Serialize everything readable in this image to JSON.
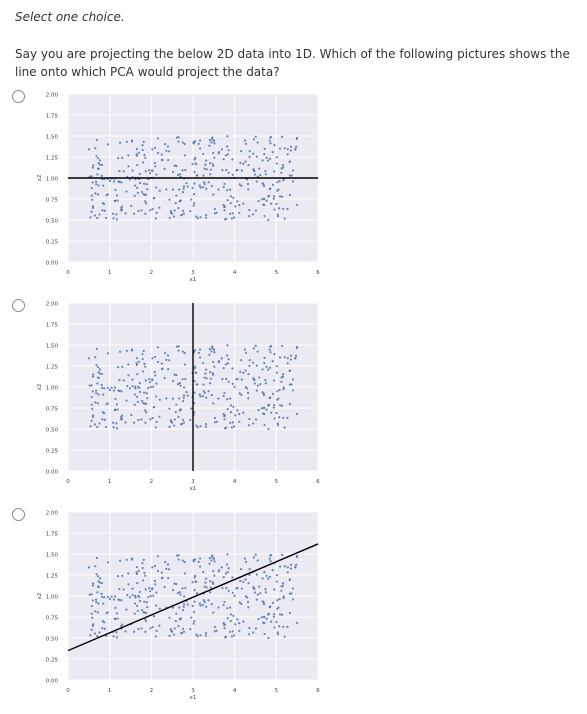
{
  "instruction": "Select one choice.",
  "question": "Say you are projecting the below 2D data into 1D. Which of the following pictures shows the line onto which PCA would project the data?",
  "options": [
    {
      "selected": false,
      "line": "horizontal"
    },
    {
      "selected": false,
      "line": "vertical"
    },
    {
      "selected": false,
      "line": "diagonal"
    }
  ],
  "colors": {
    "plot_bg": "#eaeaf2",
    "points": "#4c72b0",
    "line": "#000000",
    "grid": "#ffffff"
  },
  "chart_data": [
    {
      "type": "scatter",
      "xlabel": "x1",
      "ylabel": "x2",
      "xlim": [
        0,
        6
      ],
      "ylim": [
        0,
        2
      ],
      "xticks": [
        "0",
        "1",
        "2",
        "3",
        "4",
        "5",
        "6"
      ],
      "yticks": [
        "0.00",
        "0.25",
        "0.50",
        "0.75",
        "1.00",
        "1.25",
        "1.50",
        "1.75",
        "2.00"
      ],
      "points": {
        "count": 400,
        "x_range": [
          0.5,
          5.5
        ],
        "y_range": [
          0.5,
          1.5
        ]
      },
      "projection_line": {
        "orientation": "horizontal",
        "y": 1.0
      }
    },
    {
      "type": "scatter",
      "xlabel": "x1",
      "ylabel": "x2",
      "xlim": [
        0,
        6
      ],
      "ylim": [
        0,
        2
      ],
      "xticks": [
        "0",
        "1",
        "2",
        "3",
        "4",
        "5",
        "6"
      ],
      "yticks": [
        "0.00",
        "0.25",
        "0.50",
        "0.75",
        "1.00",
        "1.25",
        "1.50",
        "1.75",
        "2.00"
      ],
      "points": {
        "count": 400,
        "x_range": [
          0.5,
          5.5
        ],
        "y_range": [
          0.5,
          1.5
        ]
      },
      "projection_line": {
        "orientation": "vertical",
        "x": 3.0
      }
    },
    {
      "type": "scatter",
      "xlabel": "x1",
      "ylabel": "x2",
      "xlim": [
        0,
        6
      ],
      "ylim": [
        0,
        2
      ],
      "xticks": [
        "0",
        "1",
        "2",
        "3",
        "4",
        "5",
        "6"
      ],
      "yticks": [
        "0.00",
        "0.25",
        "0.50",
        "0.75",
        "1.00",
        "1.25",
        "1.50",
        "1.75",
        "2.00"
      ],
      "points": {
        "count": 400,
        "x_range": [
          0.5,
          5.5
        ],
        "y_range": [
          0.5,
          1.5
        ]
      },
      "projection_line": {
        "orientation": "diagonal",
        "from": [
          0,
          0.35
        ],
        "to": [
          6,
          1.62
        ]
      }
    }
  ]
}
